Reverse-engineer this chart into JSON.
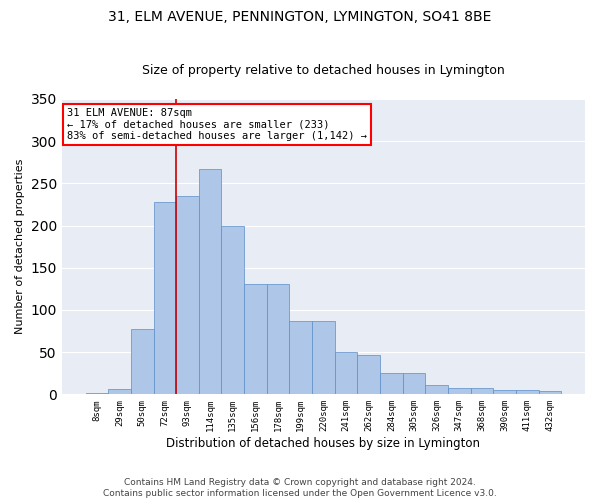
{
  "title": "31, ELM AVENUE, PENNINGTON, LYMINGTON, SO41 8BE",
  "subtitle": "Size of property relative to detached houses in Lymington",
  "xlabel": "Distribution of detached houses by size in Lymington",
  "ylabel": "Number of detached properties",
  "bar_labels": [
    "8sqm",
    "29sqm",
    "50sqm",
    "72sqm",
    "93sqm",
    "114sqm",
    "135sqm",
    "156sqm",
    "178sqm",
    "199sqm",
    "220sqm",
    "241sqm",
    "262sqm",
    "284sqm",
    "305sqm",
    "326sqm",
    "347sqm",
    "368sqm",
    "390sqm",
    "411sqm",
    "432sqm"
  ],
  "bar_values": [
    2,
    6,
    78,
    228,
    235,
    267,
    200,
    131,
    131,
    87,
    87,
    50,
    47,
    25,
    25,
    11,
    8,
    7,
    5,
    5,
    4
  ],
  "bar_color": "#aec6e8",
  "bar_edge_color": "#5b8dc8",
  "bg_color": "#e8edf5",
  "grid_color": "#ffffff",
  "vline_color": "#cc0000",
  "vline_pos": 3.5,
  "annotation_text": "31 ELM AVENUE: 87sqm\n← 17% of detached houses are smaller (233)\n83% of semi-detached houses are larger (1,142) →",
  "ylim": [
    0,
    350
  ],
  "yticks": [
    0,
    50,
    100,
    150,
    200,
    250,
    300,
    350
  ],
  "footnote": "Contains HM Land Registry data © Crown copyright and database right 2024.\nContains public sector information licensed under the Open Government Licence v3.0.",
  "title_fontsize": 10,
  "subtitle_fontsize": 9,
  "xlabel_fontsize": 8.5,
  "ylabel_fontsize": 8,
  "tick_fontsize": 6.5,
  "annotation_fontsize": 7.5,
  "footnote_fontsize": 6.5
}
